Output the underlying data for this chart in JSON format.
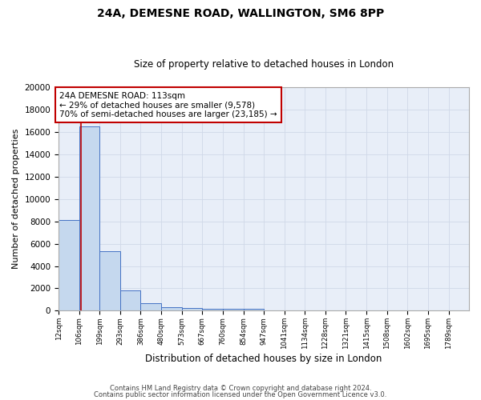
{
  "title1": "24A, DEMESNE ROAD, WALLINGTON, SM6 8PP",
  "title2": "Size of property relative to detached houses in London",
  "xlabel": "Distribution of detached houses by size in London",
  "ylabel": "Number of detached properties",
  "bin_edges": [
    12,
    106,
    199,
    293,
    386,
    480,
    573,
    667,
    760,
    854,
    947,
    1041,
    1134,
    1228,
    1321,
    1415,
    1508,
    1602,
    1695,
    1789,
    1882
  ],
  "bin_heights": [
    8100,
    16500,
    5300,
    1850,
    700,
    310,
    230,
    200,
    175,
    150,
    0,
    0,
    0,
    0,
    0,
    0,
    0,
    0,
    0,
    0
  ],
  "bar_color": "#c5d8ee",
  "bar_edge_color": "#4472c4",
  "vline_x": 113,
  "vline_color": "#c00000",
  "annotation_text": "24A DEMESNE ROAD: 113sqm\n← 29% of detached houses are smaller (9,578)\n70% of semi-detached houses are larger (23,185) →",
  "annotation_box_color": "#ffffff",
  "annotation_box_edge": "#c00000",
  "ylim": [
    0,
    20000
  ],
  "yticks": [
    0,
    2000,
    4000,
    6000,
    8000,
    10000,
    12000,
    14000,
    16000,
    18000,
    20000
  ],
  "grid_color": "#d0d8e8",
  "bg_color": "#e8eef8",
  "fig_bg_color": "#ffffff",
  "footer1": "Contains HM Land Registry data © Crown copyright and database right 2024.",
  "footer2": "Contains public sector information licensed under the Open Government Licence v3.0."
}
